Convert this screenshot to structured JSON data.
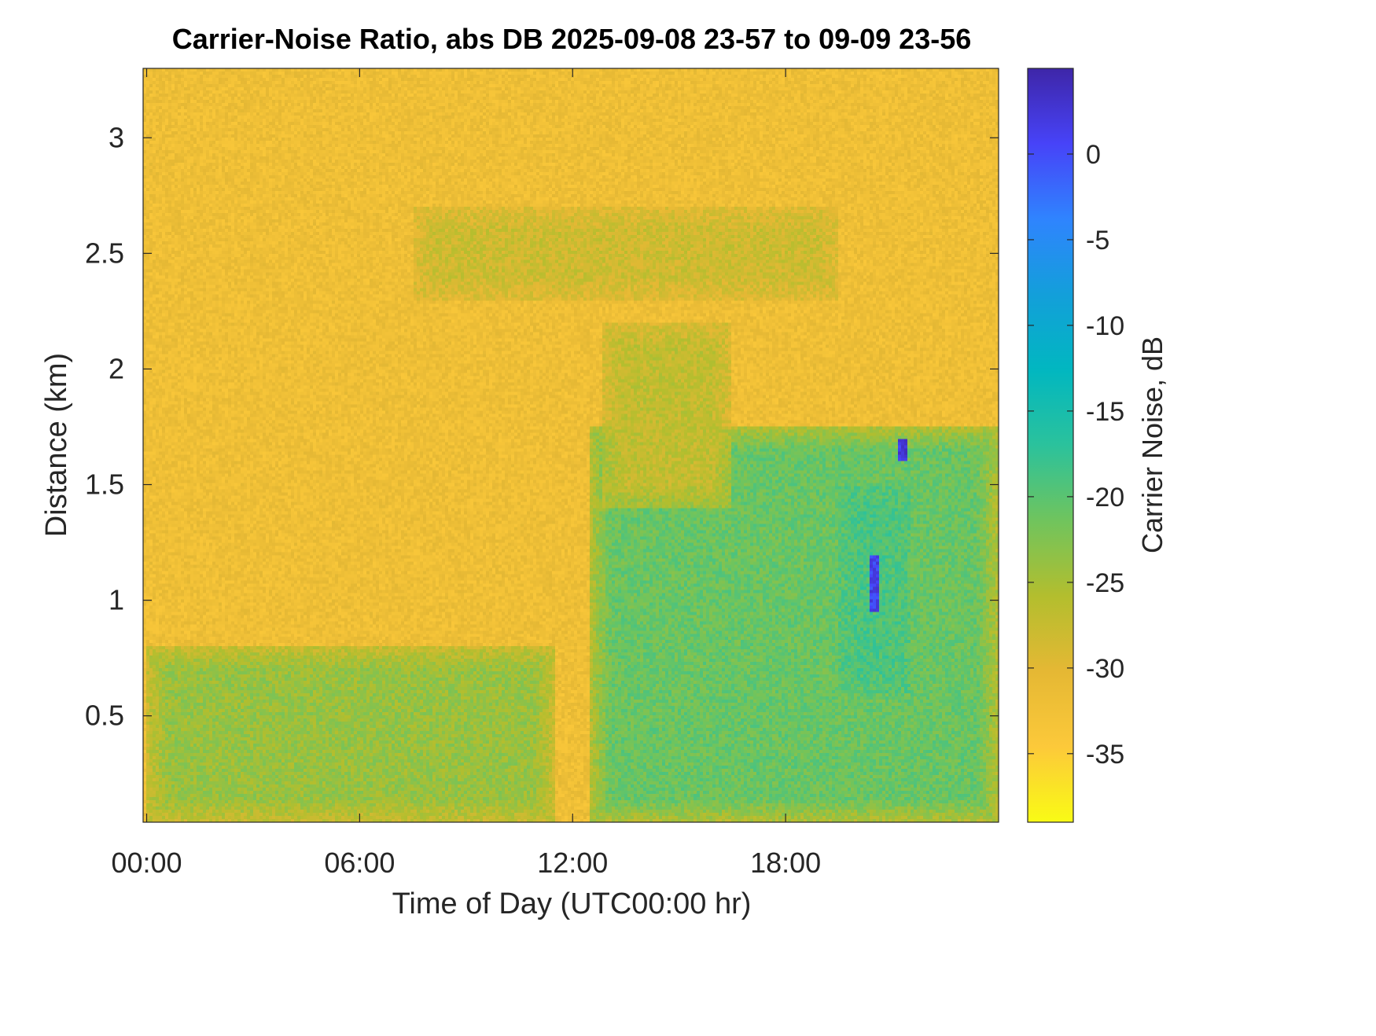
{
  "chart_data": {
    "type": "heatmap",
    "title": "Carrier-Noise Ratio, abs DB 2025-09-08 23-57 to 09-09 23-56",
    "xlabel": "Time of Day (UTC00:00 hr)",
    "ylabel": "Distance (km)",
    "colorbar_label": "Carrier Noise, dB",
    "x_ticks": [
      {
        "value": 0,
        "label": "00:00"
      },
      {
        "value": 6,
        "label": "06:00"
      },
      {
        "value": 12,
        "label": "12:00"
      },
      {
        "value": 18,
        "label": "18:00"
      }
    ],
    "y_ticks": [
      {
        "value": 0.5,
        "label": "0.5"
      },
      {
        "value": 1,
        "label": "1"
      },
      {
        "value": 1.5,
        "label": "1.5"
      },
      {
        "value": 2,
        "label": "2"
      },
      {
        "value": 2.5,
        "label": "2.5"
      },
      {
        "value": 3,
        "label": "3"
      }
    ],
    "colorbar_ticks": [
      {
        "value": 0,
        "label": "0"
      },
      {
        "value": -5,
        "label": "-5"
      },
      {
        "value": -10,
        "label": "-10"
      },
      {
        "value": -15,
        "label": "-15"
      },
      {
        "value": -20,
        "label": "-20"
      },
      {
        "value": -25,
        "label": "-25"
      },
      {
        "value": -30,
        "label": "-30"
      },
      {
        "value": -35,
        "label": "-35"
      }
    ],
    "xlim": [
      -0.1,
      24.0
    ],
    "ylim": [
      0.04,
      3.3
    ],
    "clim": [
      -39,
      5
    ],
    "colormap": "parula",
    "colormap_stops": [
      "#3E26A8",
      "#4743F8",
      "#2F84FE",
      "#139FDA",
      "#01B7C0",
      "#2BC29C",
      "#70C45D",
      "#B3BE2E",
      "#E5B834",
      "#FCC93A",
      "#F9FB15"
    ],
    "grid": false,
    "background_value_dB": -32,
    "features": [
      {
        "description": "near-surface boundary layer band, early morning",
        "x_range": [
          0,
          11.5
        ],
        "y_range": [
          0.04,
          0.8
        ],
        "value_dB": -24
      },
      {
        "description": "afternoon convective layer",
        "x_range": [
          12.5,
          24.0
        ],
        "y_range": [
          0.04,
          1.75
        ],
        "value_dB": -21
      },
      {
        "description": "enhanced return core",
        "x_range": [
          19.5,
          21.5
        ],
        "y_range": [
          0.6,
          1.5
        ],
        "value_dB": -19
      },
      {
        "description": "elevated aerosol layer",
        "x_range": [
          7.5,
          19.5
        ],
        "y_range": [
          2.3,
          2.7
        ],
        "value_dB": -28
      },
      {
        "description": "descending plume",
        "x_range": [
          12.8,
          16.5
        ],
        "y_range": [
          1.4,
          2.2
        ],
        "value_dB": -27
      },
      {
        "description": "strong return spot",
        "x_range": [
          20.4,
          20.6
        ],
        "y_range": [
          0.95,
          1.2
        ],
        "value_dB": 1
      },
      {
        "description": "strong return spot",
        "x_range": [
          21.2,
          21.4
        ],
        "y_range": [
          1.6,
          1.7
        ],
        "value_dB": 2
      }
    ]
  }
}
